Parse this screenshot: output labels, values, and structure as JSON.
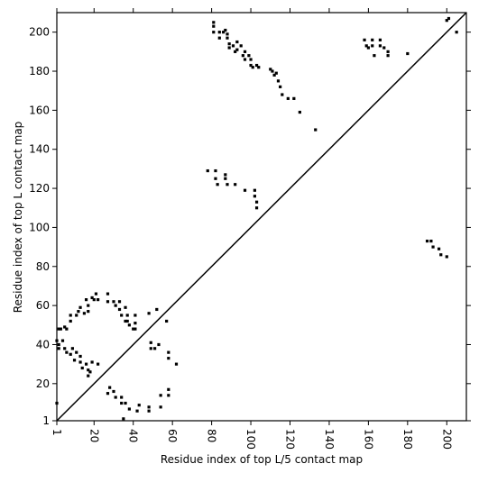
{
  "chart_data": {
    "type": "scatter",
    "xlabel": "Residue index of top L/5 contact map",
    "ylabel": "Residue index of top L contact map",
    "xlim": [
      1,
      210
    ],
    "ylim": [
      1,
      210
    ],
    "xticks": [
      1,
      20,
      40,
      60,
      80,
      100,
      120,
      140,
      160,
      180,
      200
    ],
    "yticks": [
      1,
      20,
      40,
      60,
      80,
      100,
      120,
      140,
      160,
      180,
      200
    ],
    "diagonal_line": true,
    "x": [
      81,
      81,
      81,
      84,
      84,
      86,
      87,
      88,
      88,
      89,
      89,
      91,
      92,
      93,
      93,
      95,
      96,
      97,
      97,
      99,
      100,
      100,
      101,
      103,
      104,
      110,
      111,
      112,
      113,
      114,
      115,
      116,
      119,
      122,
      125,
      133,
      158,
      159,
      160,
      162,
      162,
      163,
      166,
      166,
      168,
      170,
      170,
      180,
      200,
      201,
      205,
      78,
      82,
      82,
      83,
      87,
      87,
      88,
      92,
      97,
      102,
      102,
      103,
      103,
      190,
      192,
      193,
      196,
      197,
      200,
      2,
      3,
      5,
      6,
      8,
      8,
      11,
      12,
      13,
      15,
      16,
      17,
      17,
      19,
      20,
      21,
      22,
      27,
      27,
      30,
      31,
      33,
      33,
      34,
      36,
      36,
      37,
      37,
      38,
      41,
      41,
      41,
      48,
      52,
      57,
      1,
      2,
      2,
      5,
      4,
      6,
      8,
      9,
      10,
      11,
      13,
      13,
      14,
      16,
      17,
      19,
      22,
      18,
      28,
      27,
      30,
      31,
      34,
      34,
      36,
      38,
      42,
      48,
      48,
      54,
      54,
      58,
      58,
      49,
      49,
      51,
      53,
      58,
      58,
      62,
      35,
      1,
      17,
      40,
      43
    ],
    "series": [
      {
        "name": "contacts",
        "color": "#000000",
        "values": [
          205,
          203,
          200,
          197,
          200,
          200,
          201,
          199,
          197,
          194,
          192,
          193,
          190,
          191,
          195,
          193,
          188,
          190,
          186,
          188,
          186,
          183,
          182,
          183,
          182,
          181,
          180,
          178,
          179,
          175,
          172,
          168,
          166,
          166,
          159,
          150,
          196,
          193,
          192,
          196,
          193,
          188,
          196,
          193,
          192,
          190,
          188,
          189,
          206,
          207,
          200,
          129,
          129,
          125,
          122,
          127,
          125,
          122,
          122,
          119,
          119,
          116,
          113,
          110,
          93,
          93,
          90,
          89,
          86,
          85,
          48,
          48,
          49,
          48,
          52,
          55,
          55,
          57,
          59,
          56,
          63,
          60,
          57,
          64,
          63,
          66,
          63,
          66,
          62,
          62,
          60,
          58,
          62,
          55,
          52,
          59,
          55,
          52,
          50,
          55,
          51,
          48,
          56,
          58,
          52,
          42,
          40,
          38,
          38,
          42,
          36,
          35,
          38,
          32,
          36,
          34,
          31,
          28,
          30,
          27,
          31,
          30,
          26,
          18,
          15,
          16,
          13,
          13,
          10,
          10,
          7,
          6,
          6,
          8,
          8,
          14,
          14,
          17,
          38,
          41,
          38,
          40,
          36,
          33,
          30,
          2,
          10,
          24,
          48,
          9
        ]
      }
    ]
  }
}
